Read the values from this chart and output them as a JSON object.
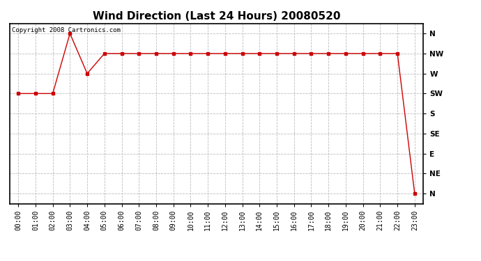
{
  "title": "Wind Direction (Last 24 Hours) 20080520",
  "copyright_text": "Copyright 2008 Cartronics.com",
  "x_labels": [
    "00:00",
    "01:00",
    "02:00",
    "03:00",
    "04:00",
    "05:00",
    "06:00",
    "07:00",
    "08:00",
    "09:00",
    "10:00",
    "11:00",
    "12:00",
    "13:00",
    "14:00",
    "15:00",
    "16:00",
    "17:00",
    "18:00",
    "19:00",
    "20:00",
    "21:00",
    "22:00",
    "23:00"
  ],
  "y_labels": [
    "N",
    "NW",
    "W",
    "SW",
    "S",
    "SE",
    "E",
    "NE",
    "N"
  ],
  "y_tick_positions": [
    8,
    7,
    6,
    5,
    4,
    3,
    2,
    1,
    0
  ],
  "wind_data": [
    5,
    5,
    5,
    8,
    6,
    7,
    7,
    7,
    7,
    7,
    7,
    7,
    7,
    7,
    7,
    7,
    7,
    7,
    7,
    7,
    7,
    7,
    7,
    0
  ],
  "line_color": "#cc0000",
  "marker": "s",
  "marker_size": 2.5,
  "bg_color": "#ffffff",
  "plot_bg_color": "#ffffff",
  "grid_color": "#bbbbbb",
  "title_fontsize": 11,
  "tick_fontsize": 7.5,
  "copyright_fontsize": 6.5
}
